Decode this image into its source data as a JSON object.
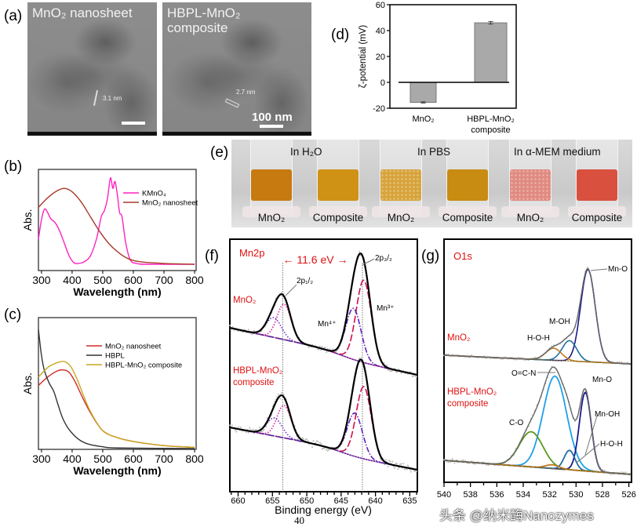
{
  "figure": {
    "page_number": "40",
    "watermark": "头条 @纳米酶Nanozymes"
  },
  "panel_a": {
    "label": "(a)",
    "images": [
      {
        "title_line1": "MnO₂ nanosheet",
        "title_line2": "",
        "spacing": "3.1 nm"
      },
      {
        "title_line1": "HBPL-MnO₂",
        "title_line2": "composite",
        "spacing": "2.7 nm"
      }
    ],
    "scale_bar": "100 nm"
  },
  "panel_e": {
    "label": "(e)",
    "groups": [
      "In H₂O",
      "In PBS",
      "In α-MEM medium"
    ],
    "tubes": [
      {
        "label": "MnO₂",
        "color": "#c67a10"
      },
      {
        "label": "Composite",
        "color": "#cf9215"
      },
      {
        "label": "MnO₂",
        "color": "#d7a33a"
      },
      {
        "label": "Composite",
        "color": "#c88c12"
      },
      {
        "label": "MnO₂",
        "color": "#e08a80"
      },
      {
        "label": "Composite",
        "color": "#d9503e"
      }
    ]
  },
  "chart_data": [
    {
      "id": "d",
      "label": "(d)",
      "type": "bar",
      "categories": [
        "MnO₂",
        "HBPL-MnO₂"
      ],
      "category_sublabels": [
        "",
        "composite"
      ],
      "values": [
        -15.5,
        46
      ],
      "errors": [
        0.5,
        1
      ],
      "ylabel": "ζ-potential (mV)",
      "ylim": [
        -20,
        60
      ],
      "yticks": [
        -20,
        0,
        20,
        40,
        60
      ],
      "bar_color": "#a9a9a9"
    },
    {
      "id": "b",
      "label": "(b)",
      "type": "line",
      "xlabel": "Wavelength (nm)",
      "ylabel": "Abs.",
      "xlim": [
        290,
        805
      ],
      "xticks": [
        300,
        400,
        500,
        600,
        700,
        800
      ],
      "legend_position": "top-right",
      "series": [
        {
          "name": "KMnO₄",
          "color": "#ff22c0",
          "x": [
            290,
            300,
            310,
            320,
            330,
            345,
            360,
            375,
            390,
            405,
            420,
            440,
            460,
            480,
            495,
            505,
            515,
            525,
            533,
            540,
            548,
            555,
            563,
            575,
            590,
            610,
            650,
            800
          ],
          "y": [
            0.29,
            0.52,
            0.64,
            0.6,
            0.53,
            0.48,
            0.38,
            0.24,
            0.1,
            0.02,
            0.01,
            0.03,
            0.1,
            0.3,
            0.55,
            0.62,
            0.75,
            1.0,
            0.88,
            0.96,
            0.8,
            0.6,
            0.55,
            0.25,
            0.05,
            0.01,
            0,
            0
          ]
        },
        {
          "name": "MnO₂ nanosheet",
          "color": "#a83a2a",
          "x": [
            290,
            320,
            350,
            375,
            400,
            430,
            460,
            490,
            520,
            550,
            580,
            620,
            700,
            800
          ],
          "y": [
            0.66,
            0.77,
            0.85,
            0.88,
            0.84,
            0.72,
            0.55,
            0.38,
            0.24,
            0.14,
            0.07,
            0.03,
            0.01,
            0
          ]
        }
      ]
    },
    {
      "id": "c",
      "label": "(c)",
      "type": "line",
      "xlabel": "Wavelength (nm)",
      "ylabel": "Abs.",
      "xlim": [
        290,
        805
      ],
      "xticks": [
        300,
        400,
        500,
        600,
        700,
        800
      ],
      "legend_position": "top-right",
      "series": [
        {
          "name": "MnO₂ nanosheet",
          "color": "#d42a2a",
          "x": [
            290,
            320,
            350,
            370,
            390,
            410,
            430,
            460,
            500,
            550,
            600,
            700,
            800
          ],
          "y": [
            0.53,
            0.6,
            0.65,
            0.66,
            0.64,
            0.56,
            0.45,
            0.3,
            0.15,
            0.09,
            0.06,
            0.025,
            0.01
          ]
        },
        {
          "name": "HBPL",
          "color": "#333333",
          "x": [
            290,
            300,
            310,
            325,
            340,
            355,
            370,
            390,
            420,
            450,
            500,
            550,
            800
          ],
          "y": [
            1.0,
            0.78,
            0.65,
            0.55,
            0.48,
            0.36,
            0.25,
            0.16,
            0.08,
            0.04,
            0.015,
            0.005,
            0
          ]
        },
        {
          "name": "HBPL-MnO₂ composite",
          "color": "#c8a820",
          "x": [
            290,
            320,
            350,
            375,
            395,
            415,
            435,
            460,
            500,
            550,
            600,
            700,
            800
          ],
          "y": [
            0.6,
            0.68,
            0.72,
            0.73,
            0.69,
            0.59,
            0.46,
            0.31,
            0.15,
            0.09,
            0.06,
            0.025,
            0.01
          ]
        }
      ]
    },
    {
      "id": "f",
      "label": "(f)",
      "type": "line",
      "title": "Mn2p",
      "xlabel": "Binding energy (eV)",
      "xlim": [
        661.2,
        633.9
      ],
      "xticks": [
        660,
        655,
        650,
        645,
        640,
        635
      ],
      "reference_lines": [
        653.5,
        641.9
      ],
      "annotations": {
        "splitting": "11.6 eV",
        "p32": "2p₃/₂",
        "p12": "2p₁/₂",
        "mn4": "Mn⁴⁺",
        "mn3": "Mn³⁺"
      },
      "spectra": [
        {
          "name_line1": "MnO₂",
          "name_line2": "",
          "components": [
            {
              "center": 641.7,
              "height": 1.0,
              "fwhm": 2.6,
              "color": "#d0104a",
              "style": "dashed"
            },
            {
              "center": 643.2,
              "height": 0.62,
              "fwhm": 2.6,
              "color": "#6020c0",
              "style": "dashdot"
            },
            {
              "center": 653.3,
              "height": 0.43,
              "fwhm": 2.4,
              "color": "#e0209a",
              "style": "dotted"
            },
            {
              "center": 654.8,
              "height": 0.24,
              "fwhm": 2.6,
              "color": "#7030d0",
              "style": "dotted"
            }
          ]
        },
        {
          "name_line1": "HBPL-MnO₂",
          "name_line2": "composite",
          "components": [
            {
              "center": 641.7,
              "height": 1.0,
              "fwhm": 2.6,
              "color": "#d0104a",
              "style": "dashed"
            },
            {
              "center": 643.0,
              "height": 0.6,
              "fwhm": 2.6,
              "color": "#6020c0",
              "style": "dashdot"
            },
            {
              "center": 653.3,
              "height": 0.45,
              "fwhm": 2.4,
              "color": "#e0209a",
              "style": "dotted"
            },
            {
              "center": 654.7,
              "height": 0.25,
              "fwhm": 2.6,
              "color": "#7030d0",
              "style": "dotted"
            }
          ]
        }
      ]
    },
    {
      "id": "g",
      "label": "(g)",
      "type": "line",
      "title": "O1s",
      "xlim": [
        540.0,
        525.8
      ],
      "xticks": [
        540,
        538,
        536,
        534,
        532,
        530,
        528,
        526
      ],
      "spectra": [
        {
          "name_line1": "MnO₂",
          "name_line2": "",
          "components": [
            {
              "name": "Mn-O",
              "center": 529.1,
              "height": 1.0,
              "fwhm": 1.3,
              "color": "#1a1a8c"
            },
            {
              "name": "M-OH",
              "center": 530.5,
              "height": 0.22,
              "fwhm": 1.3,
              "color": "#1f6fa0"
            },
            {
              "name": "H-O-H",
              "center": 531.7,
              "height": 0.13,
              "fwhm": 1.4,
              "color": "#c07a20"
            }
          ]
        },
        {
          "name_line1": "HBPL-MnO₂",
          "name_line2": "composite",
          "components": [
            {
              "name": "O=C-N",
              "center": 531.6,
              "height": 1.0,
              "fwhm": 2.1,
              "color": "#1ea0e8"
            },
            {
              "name": "C-O",
              "center": 533.4,
              "height": 0.38,
              "fwhm": 2.1,
              "color": "#5a9a20"
            },
            {
              "name": "Mn-O",
              "center": 529.3,
              "height": 0.85,
              "fwhm": 1.05,
              "color": "#1a1a8c"
            },
            {
              "name": "Mn-OH",
              "center": 530.5,
              "height": 0.21,
              "fwhm": 0.95,
              "color": "#1f6fa0"
            },
            {
              "name": "H-O-H",
              "center": 531.8,
              "height": 0.04,
              "fwhm": 1.2,
              "color": "#c07a20"
            }
          ]
        }
      ]
    }
  ]
}
